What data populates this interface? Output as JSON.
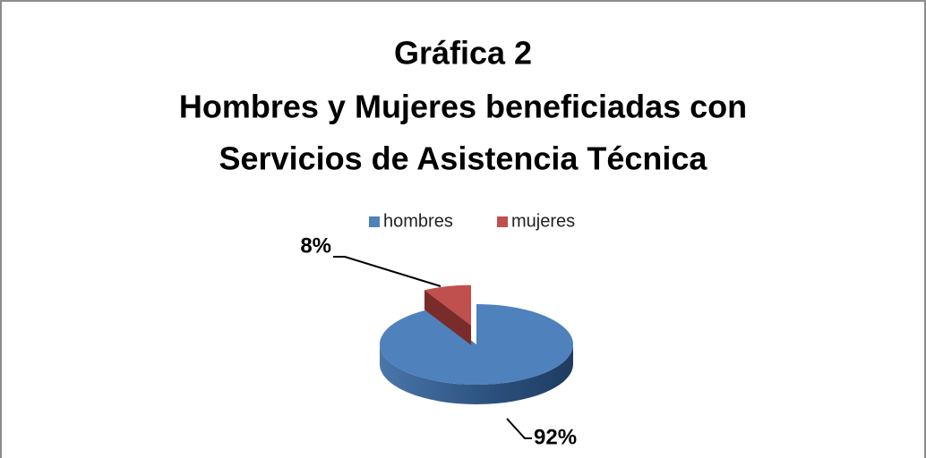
{
  "chart_data": {
    "type": "pie",
    "title": [
      "Gráfica 2",
      "Hombres y Mujeres beneficiadas con",
      "Servicios de Asistencia Técnica"
    ],
    "categories": [
      "hombres",
      "mujeres"
    ],
    "values": [
      92,
      8
    ],
    "value_labels": [
      "92%",
      "8%"
    ],
    "colors": [
      "#4f81bd",
      "#c0504d"
    ],
    "legend": "top"
  }
}
